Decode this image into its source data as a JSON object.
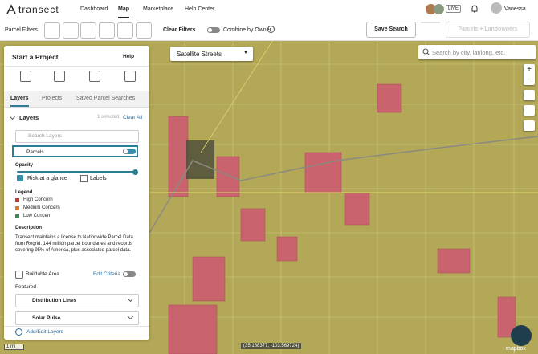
{
  "nav": {
    "logo": "transect",
    "links": [
      "Dashboard",
      "Map",
      "Marketplace",
      "Help Center"
    ],
    "live": "LIVE",
    "user": "Vanessa"
  },
  "toolbar": {
    "label": "Parcel Filters",
    "clear": "Clear Filters",
    "combine": "Combine by Owner",
    "save": "Save Search",
    "parcels_landowners": "Parcels + Landowners"
  },
  "map": {
    "style": "Satellite Streets",
    "search": "Search by city, lat/long, etc.",
    "zoom_in": "+",
    "zoom_out": "−",
    "scale": "1 mi",
    "coordinates": "(35.168377, -103.569724)",
    "attribution": "mapbox"
  },
  "panel": {
    "title": "Start a Project",
    "help": "Help",
    "tabs": [
      "Layers",
      "Projects",
      "Saved Parcel Searches"
    ],
    "layers": {
      "title": "Layers",
      "selected": "1 selected",
      "clear": "Clear All",
      "search": "Search Layers",
      "parcels": {
        "name": "Parcels",
        "opacity": "Opacity",
        "risk": "Risk at a glance",
        "labels": "Labels"
      }
    },
    "legend": {
      "title": "Legend",
      "items": [
        "High Concern",
        "Medium Concern",
        "Low Concern"
      ]
    },
    "description": {
      "title": "Description",
      "text": "Transect maintains a license to Nationwide Parcel Data from Regrid. 144 million parcel boundaries and records covering 95% of America, plus associated parcel data."
    },
    "buildable": {
      "name": "Buildable Area",
      "edit": "Edit Criteria"
    },
    "featured": {
      "title": "Featured",
      "items": [
        "Distribution Lines",
        "Solar Pulse"
      ]
    },
    "add_edit": "Add/Edit Layers"
  }
}
